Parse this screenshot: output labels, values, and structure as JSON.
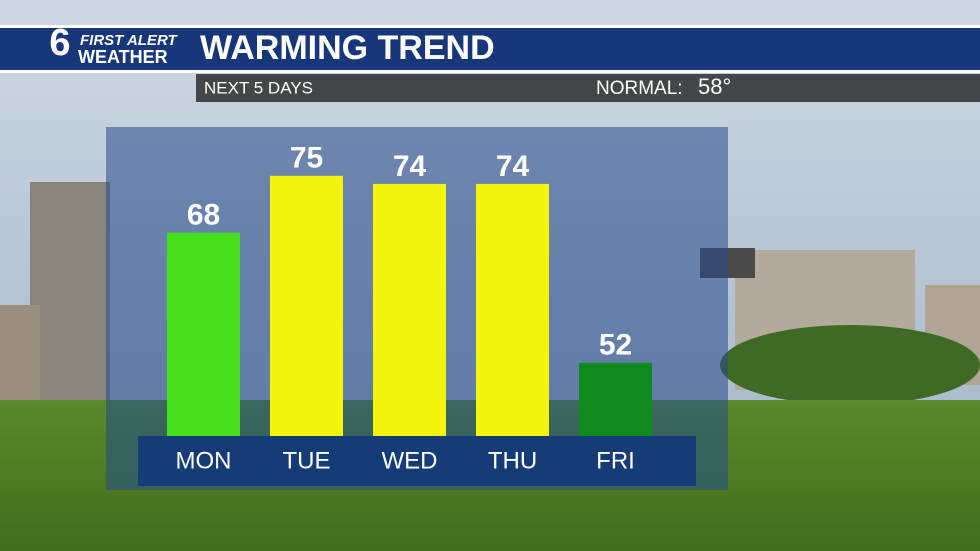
{
  "logo": {
    "number": "6",
    "line1": "FIRST ALERT",
    "line2": "WEATHER"
  },
  "chart_data": {
    "type": "bar",
    "title": "WARMING TREND",
    "subtitle": "NEXT 5 DAYS",
    "normal": {
      "label": "NORMAL:",
      "value": "58°"
    },
    "categories": [
      "MON",
      "TUE",
      "WED",
      "THU",
      "FRI"
    ],
    "values": [
      68,
      75,
      74,
      74,
      52
    ],
    "colors": [
      "#46e01c",
      "#f3f50d",
      "#f3f50d",
      "#f3f50d",
      "#10891d"
    ],
    "ylim": [
      43,
      81
    ]
  }
}
